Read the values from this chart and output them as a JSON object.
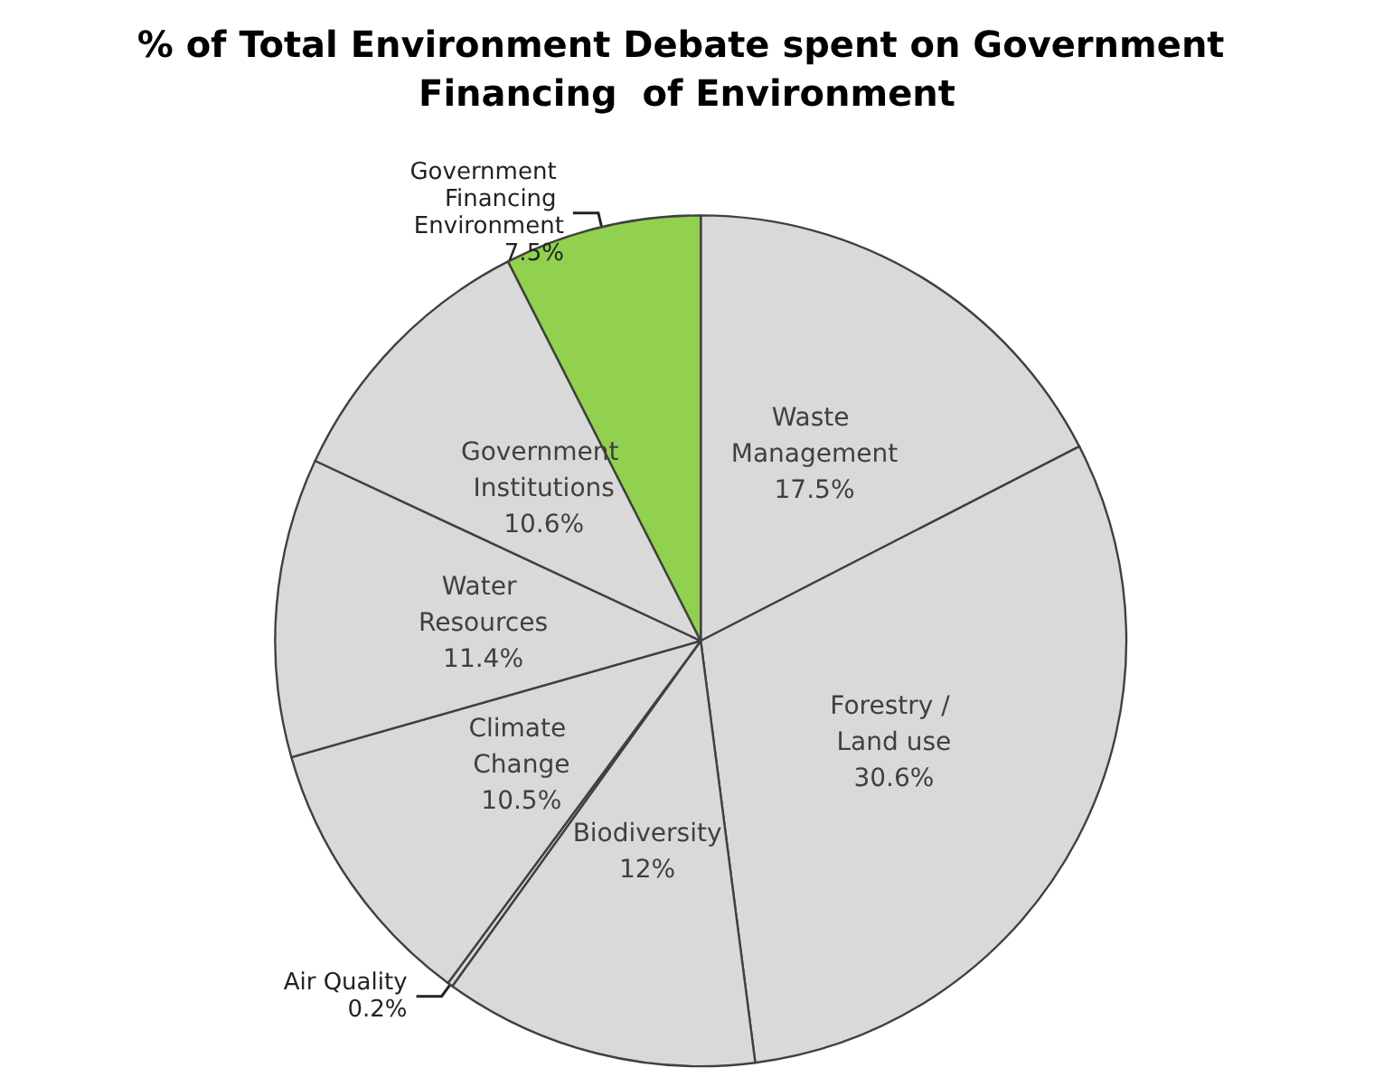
{
  "chart_data": {
    "type": "pie",
    "title": "% of Total Environment Debate spent on Government Financing  of Environment",
    "categories": [
      "Waste Management",
      "Forestry / Land use",
      "Biodiversity",
      "Air Quality",
      "Climate Change",
      "Water Resources",
      "Government Institutions",
      "Government Financing Environment"
    ],
    "values": [
      17.5,
      30.6,
      12,
      0.2,
      10.5,
      11.4,
      10.6,
      7.5
    ],
    "value_labels": [
      "17.5%",
      "30.6%",
      "12%",
      "0.2%",
      "10.5%",
      "11.4%",
      "10.6%",
      "7.5%"
    ],
    "colors": [
      "#d9d9d9",
      "#d9d9d9",
      "#d9d9d9",
      "#d9d9d9",
      "#d9d9d9",
      "#d9d9d9",
      "#d9d9d9",
      "#92d050"
    ],
    "legend": false
  }
}
